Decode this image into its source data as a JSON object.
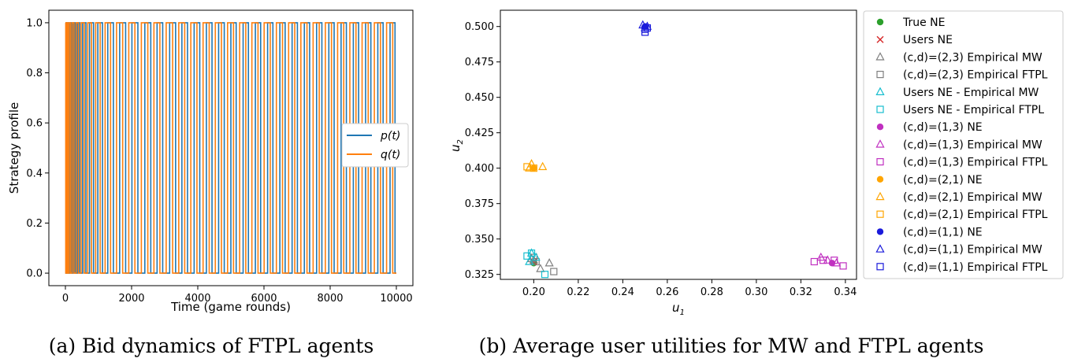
{
  "chart_data": [
    {
      "type": "line",
      "caption": "(a) Bid dynamics of FTPL agents",
      "xlabel": "Time (game rounds)",
      "ylabel": "Strategy profile",
      "xlim": [
        -500,
        10500
      ],
      "ylim": [
        -0.05,
        1.05
      ],
      "xticks": [
        0,
        2000,
        4000,
        6000,
        8000,
        10000
      ],
      "xtick_labels": [
        "0",
        "2000",
        "4000",
        "6000",
        "8000",
        "10000"
      ],
      "yticks": [
        0.0,
        0.2,
        0.4,
        0.6,
        0.8,
        1.0
      ],
      "ytick_labels": [
        "0.0",
        "0.2",
        "0.4",
        "0.6",
        "0.8",
        "1.0"
      ],
      "legend_position": "center-right",
      "grid": false,
      "series": [
        {
          "name": "p(t)",
          "color": "#1f77b4",
          "x_range": [
            0,
            10000
          ],
          "levels": [
            0,
            1
          ],
          "switch_times": [
            20,
            50,
            90,
            130,
            180,
            230,
            290,
            360,
            430,
            520,
            620,
            730,
            850,
            980,
            1120,
            1280,
            1450,
            1640,
            1820,
            2010,
            2190,
            2400,
            2580,
            2770,
            2940,
            3150,
            3330,
            3520,
            3690,
            3890,
            4060,
            4260,
            4430,
            4630,
            4800,
            5000,
            5160,
            5370,
            5530,
            5740,
            5900,
            6110,
            6270,
            6480,
            6640,
            6850,
            7010,
            7220,
            7380,
            7590,
            7750,
            7960,
            8120,
            8330,
            8490,
            8700,
            8860,
            9070,
            9230,
            9440,
            9600,
            9810,
            9960
          ]
        },
        {
          "name": "q(t)",
          "color": "#ff7f0e",
          "x_range": [
            0,
            10000
          ],
          "levels": [
            0,
            1
          ],
          "switch_times": [
            10,
            35,
            70,
            110,
            155,
            205,
            260,
            325,
            395,
            475,
            570,
            675,
            790,
            915,
            1050,
            1200,
            1365,
            1545,
            1730,
            1915,
            2100,
            2295,
            2490,
            2675,
            2855,
            3045,
            3240,
            3425,
            3605,
            3790,
            3975,
            4160,
            4345,
            4530,
            4715,
            4900,
            5080,
            5265,
            5450,
            5635,
            5820,
            6005,
            6190,
            6375,
            6560,
            6745,
            6930,
            7115,
            7300,
            7485,
            7670,
            7855,
            8040,
            8225,
            8410,
            8595,
            8780,
            8965,
            9150,
            9335,
            9520,
            9705,
            9890
          ]
        }
      ]
    },
    {
      "type": "scatter",
      "caption": "(b) Average user utilities for MW and FTPL agents",
      "xlabel": "u_1",
      "ylabel": "u_2",
      "xlim": [
        0.185,
        0.345
      ],
      "ylim": [
        0.3215,
        0.5115
      ],
      "xticks": [
        0.2,
        0.22,
        0.24,
        0.26,
        0.28,
        0.3,
        0.32,
        0.34
      ],
      "xtick_labels": [
        "0.20",
        "0.22",
        "0.24",
        "0.26",
        "0.28",
        "0.30",
        "0.32",
        "0.34"
      ],
      "yticks": [
        0.325,
        0.35,
        0.375,
        0.4,
        0.425,
        0.45,
        0.475,
        0.5
      ],
      "ytick_labels": [
        "0.325",
        "0.350",
        "0.375",
        "0.400",
        "0.425",
        "0.450",
        "0.475",
        "0.500"
      ],
      "legend_position": "outside-right",
      "grid": false,
      "series": [
        {
          "name": "True NE",
          "marker": "dot",
          "color": "#2ca02c",
          "points": [
            [
              0.2,
              0.333
            ]
          ]
        },
        {
          "name": "Users NE",
          "marker": "x",
          "color": "#d62728",
          "points": [
            [
              0.2,
              0.334
            ]
          ]
        },
        {
          "name": "(c,d)=(2,3) Empirical MW",
          "marker": "triangle",
          "color": "#7f7f7f",
          "points": [
            [
              0.199,
              0.336
            ],
            [
              0.203,
              0.329
            ],
            [
              0.207,
              0.333
            ],
            [
              0.2,
              0.335
            ]
          ]
        },
        {
          "name": "(c,d)=(2,3) Empirical FTPL",
          "marker": "square",
          "color": "#7f7f7f",
          "points": [
            [
              0.2,
              0.337
            ],
            [
              0.209,
              0.327
            ],
            [
              0.201,
              0.334
            ]
          ]
        },
        {
          "name": "Users NE - Empirical MW",
          "marker": "triangle",
          "color": "#17becf",
          "points": [
            [
              0.199,
              0.34
            ],
            [
              0.201,
              0.337
            ],
            [
              0.198,
              0.334
            ]
          ]
        },
        {
          "name": "Users NE - Empirical FTPL",
          "marker": "square",
          "color": "#17becf",
          "points": [
            [
              0.197,
              0.338
            ],
            [
              0.199,
              0.34
            ],
            [
              0.205,
              0.325
            ]
          ]
        },
        {
          "name": "(c,d)=(1,3) NE",
          "marker": "dot",
          "color": "#c030c0",
          "points": [
            [
              0.334,
              0.333
            ]
          ]
        },
        {
          "name": "(c,d)=(1,3) Empirical MW",
          "marker": "triangle",
          "color": "#c030c0",
          "points": [
            [
              0.329,
              0.337
            ],
            [
              0.336,
              0.333
            ],
            [
              0.332,
              0.335
            ]
          ]
        },
        {
          "name": "(c,d)=(1,3) Empirical FTPL",
          "marker": "square",
          "color": "#c030c0",
          "points": [
            [
              0.326,
              0.334
            ],
            [
              0.335,
              0.335
            ],
            [
              0.339,
              0.331
            ],
            [
              0.33,
              0.335
            ]
          ]
        },
        {
          "name": "(c,d)=(2,1) NE",
          "marker": "dot",
          "color": "#ffa500",
          "points": [
            [
              0.2,
              0.4
            ]
          ]
        },
        {
          "name": "(c,d)=(2,1) Empirical MW",
          "marker": "triangle",
          "color": "#ffa500",
          "points": [
            [
              0.199,
              0.403
            ],
            [
              0.204,
              0.401
            ],
            [
              0.198,
              0.4
            ]
          ]
        },
        {
          "name": "(c,d)=(2,1) Empirical FTPL",
          "marker": "square",
          "color": "#ffa500",
          "points": [
            [
              0.197,
              0.401
            ],
            [
              0.2,
              0.4
            ]
          ]
        },
        {
          "name": "(c,d)=(1,1) NE",
          "marker": "dot",
          "color": "#1a1adb",
          "points": [
            [
              0.25,
              0.5
            ]
          ]
        },
        {
          "name": "(c,d)=(1,1) Empirical MW",
          "marker": "triangle",
          "color": "#1a1adb",
          "points": [
            [
              0.249,
              0.501
            ],
            [
              0.25,
              0.499
            ],
            [
              0.251,
              0.5
            ]
          ]
        },
        {
          "name": "(c,d)=(1,1) Empirical FTPL",
          "marker": "square",
          "color": "#1a1adb",
          "points": [
            [
              0.25,
              0.496
            ],
            [
              0.251,
              0.499
            ],
            [
              0.25,
              0.498
            ]
          ]
        }
      ]
    }
  ]
}
